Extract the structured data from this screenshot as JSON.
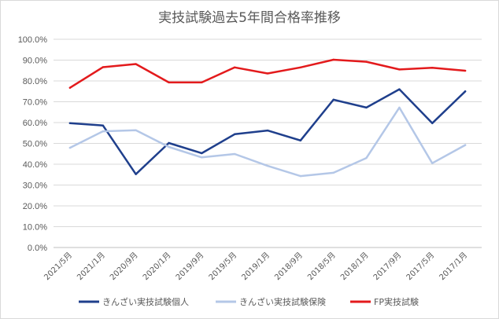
{
  "chart_data": {
    "type": "line",
    "title": "実技試験過去5年間合格率推移",
    "categories": [
      "2021/5月",
      "2021/1月",
      "2020/9月",
      "2020/1月",
      "2019/9月",
      "2019/5月",
      "2019/1月",
      "2018/9月",
      "2018/5月",
      "2018/1月",
      "2017/9月",
      "2017/5月",
      "2017/1月"
    ],
    "y_ticks": [
      "0.0%",
      "10.0%",
      "20.0%",
      "30.0%",
      "40.0%",
      "50.0%",
      "60.0%",
      "70.0%",
      "80.0%",
      "90.0%",
      "100.0%"
    ],
    "ylim": [
      0,
      100
    ],
    "grid": true,
    "legend_position": "bottom",
    "series": [
      {
        "name": "きんざい実技試験個人",
        "color": "#1f3f8c",
        "values": [
          59.7,
          58.6,
          35.2,
          50.2,
          45.3,
          54.4,
          56.2,
          51.4,
          71.0,
          67.2,
          76.0,
          59.7,
          75.0
        ]
      },
      {
        "name": "きんざい実技試験保険",
        "color": "#b4c7e7",
        "values": [
          47.9,
          55.8,
          56.3,
          48.3,
          43.3,
          44.9,
          39.2,
          34.3,
          35.9,
          43.0,
          67.2,
          40.5,
          49.2
        ]
      },
      {
        "name": "FP実技試験",
        "color": "#e31a1c",
        "values": [
          76.7,
          86.6,
          88.1,
          79.3,
          79.3,
          86.5,
          83.6,
          86.5,
          90.2,
          89.2,
          85.5,
          86.3,
          84.9
        ]
      }
    ]
  }
}
